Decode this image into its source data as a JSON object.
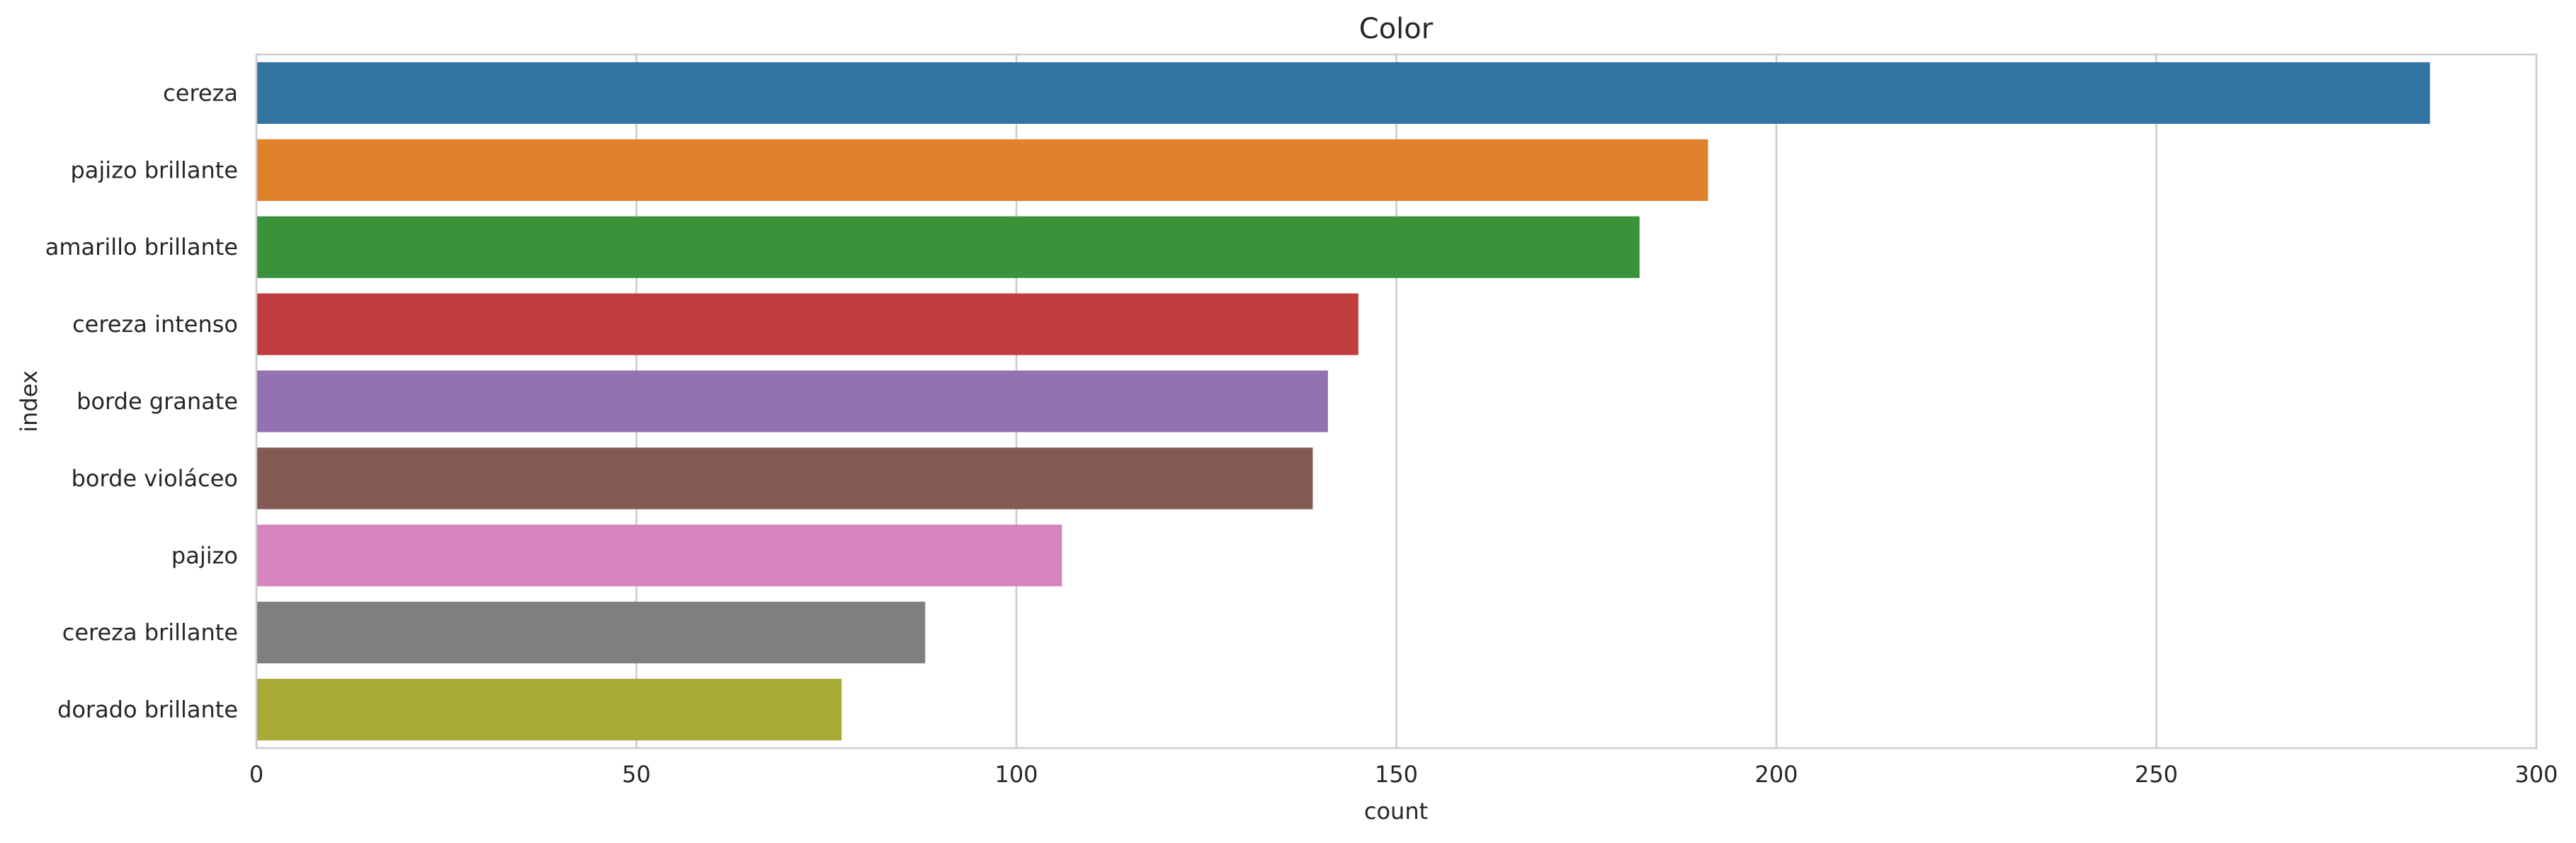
{
  "chart_data": {
    "type": "bar",
    "orientation": "horizontal",
    "title": "Color",
    "xlabel": "count",
    "ylabel": "index",
    "xlim": [
      0,
      300
    ],
    "xticks": [
      0,
      50,
      100,
      150,
      200,
      250,
      300
    ],
    "grid": true,
    "categories": [
      "cereza",
      "pajizo brillante",
      "amarillo brillante",
      "cereza intenso",
      "borde granate",
      "borde violáceo",
      "pajizo",
      "cereza brillante",
      "dorado brillante"
    ],
    "values": [
      286,
      191,
      182,
      145,
      141,
      139,
      106,
      88,
      77
    ],
    "colors": [
      "#3274a1",
      "#e1812c",
      "#3a923a",
      "#c03d3e",
      "#9372b2",
      "#845b53",
      "#d684bd",
      "#7f7f7f",
      "#a9aa35"
    ]
  }
}
